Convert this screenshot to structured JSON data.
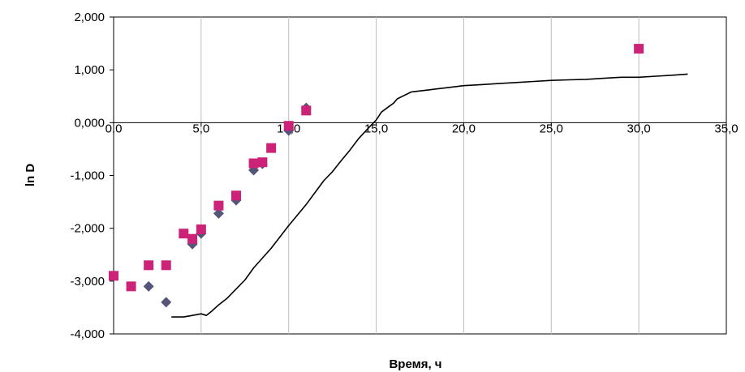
{
  "chart_data": {
    "type": "scatter",
    "xlabel": "Время, ч",
    "ylabel": "ln D",
    "xlim": [
      0,
      35
    ],
    "ylim": [
      -4,
      2
    ],
    "x_ticks": [
      0,
      5,
      10,
      15,
      20,
      25,
      30,
      35
    ],
    "x_tick_labels": [
      "0,0",
      "5,0",
      "10,0",
      "15,0",
      "20,0",
      "25,0",
      "30,0",
      "35,0"
    ],
    "y_ticks": [
      2,
      1,
      0,
      -1,
      -2,
      -3,
      -4
    ],
    "y_tick_labels": [
      "2,000",
      "1,000",
      "0,000",
      "-1,000",
      "-2,000",
      "-3,000",
      "-4,000"
    ],
    "grid": "vertical",
    "legend": "none",
    "series": [
      {
        "marker": "diamond",
        "color": "#55557a",
        "points": [
          [
            2.0,
            -3.1
          ],
          [
            3.0,
            -3.4
          ],
          [
            4.5,
            -2.3
          ],
          [
            5.0,
            -2.1
          ],
          [
            6.0,
            -1.72
          ],
          [
            7.0,
            -1.47
          ],
          [
            8.0,
            -0.9
          ],
          [
            8.5,
            -0.78
          ],
          [
            10.0,
            -0.15
          ],
          [
            11.0,
            0.28
          ]
        ]
      },
      {
        "marker": "square",
        "color": "#cc2277",
        "points": [
          [
            0.0,
            -2.9
          ],
          [
            1.0,
            -3.1
          ],
          [
            2.0,
            -2.7
          ],
          [
            3.0,
            -2.7
          ],
          [
            4.0,
            -2.1
          ],
          [
            4.5,
            -2.2
          ],
          [
            5.0,
            -2.02
          ],
          [
            6.0,
            -1.57
          ],
          [
            7.0,
            -1.38
          ],
          [
            8.0,
            -0.77
          ],
          [
            8.5,
            -0.75
          ],
          [
            9.0,
            -0.48
          ],
          [
            10.0,
            -0.06
          ],
          [
            11.0,
            0.23
          ],
          [
            30.0,
            1.4
          ]
        ]
      },
      {
        "marker": "line",
        "color": "#000000",
        "points": [
          [
            3.3,
            -3.68
          ],
          [
            4.0,
            -3.68
          ],
          [
            4.5,
            -3.65
          ],
          [
            5.0,
            -3.62
          ],
          [
            5.3,
            -3.65
          ],
          [
            5.6,
            -3.57
          ],
          [
            6.0,
            -3.45
          ],
          [
            6.5,
            -3.32
          ],
          [
            7.0,
            -3.15
          ],
          [
            7.5,
            -2.98
          ],
          [
            8.0,
            -2.75
          ],
          [
            9.0,
            -2.38
          ],
          [
            10.0,
            -1.95
          ],
          [
            11.0,
            -1.55
          ],
          [
            12.0,
            -1.1
          ],
          [
            12.5,
            -0.93
          ],
          [
            13.0,
            -0.72
          ],
          [
            13.5,
            -0.52
          ],
          [
            14.0,
            -0.3
          ],
          [
            14.5,
            -0.12
          ],
          [
            15.0,
            0.05
          ],
          [
            15.3,
            0.2
          ],
          [
            15.7,
            0.3
          ],
          [
            16.0,
            0.37
          ],
          [
            16.2,
            0.45
          ],
          [
            16.5,
            0.5
          ],
          [
            17.0,
            0.58
          ],
          [
            17.5,
            0.6
          ],
          [
            18.0,
            0.62
          ],
          [
            18.5,
            0.64
          ],
          [
            19.0,
            0.66
          ],
          [
            20.0,
            0.7
          ],
          [
            21.0,
            0.72
          ],
          [
            22.0,
            0.74
          ],
          [
            23.0,
            0.76
          ],
          [
            24.0,
            0.78
          ],
          [
            25.0,
            0.8
          ],
          [
            26.0,
            0.81
          ],
          [
            27.0,
            0.82
          ],
          [
            28.0,
            0.84
          ],
          [
            29.0,
            0.86
          ],
          [
            30.0,
            0.86
          ],
          [
            31.0,
            0.88
          ],
          [
            32.0,
            0.9
          ],
          [
            32.8,
            0.92
          ]
        ]
      }
    ]
  }
}
